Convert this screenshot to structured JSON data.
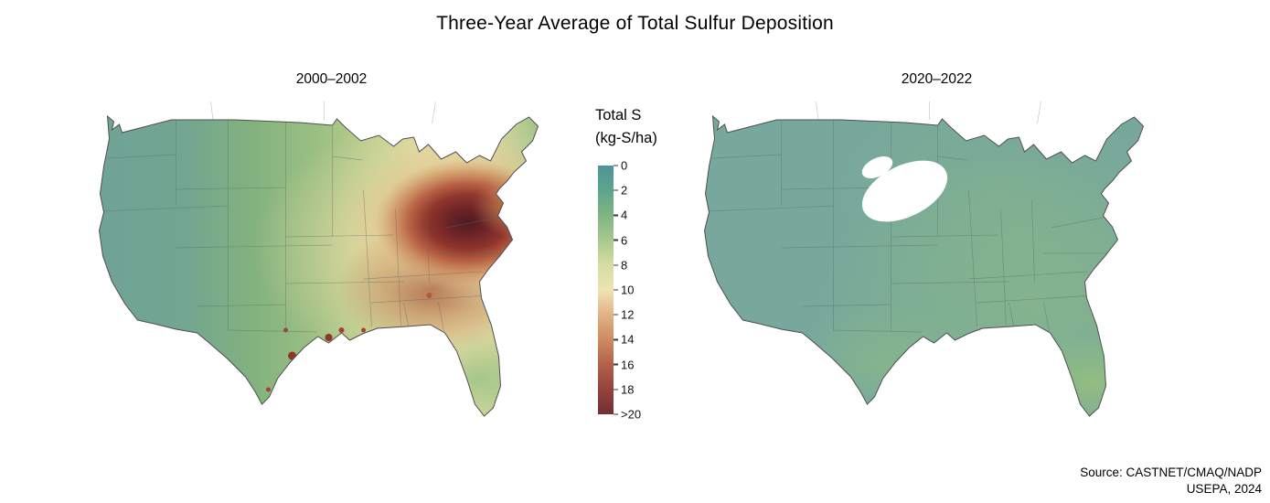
{
  "figure": {
    "title": "Three-Year Average of Total Sulfur Deposition",
    "source_line1": "Source: CASTNET/CMAQ/NADP",
    "source_line2": "USEPA, 2024"
  },
  "maps": [
    {
      "id": "map-2000-2002",
      "label": "2000–2002"
    },
    {
      "id": "map-2020-2022",
      "label": "2020–2022"
    }
  ],
  "legend": {
    "title_line1": "Total S",
    "title_line2": "(kg-S/ha)",
    "ticks": [
      "0",
      "2",
      "4",
      "6",
      "8",
      "10",
      "12",
      "14",
      "16",
      "18",
      ">20"
    ],
    "colors": [
      "#4e939b",
      "#5ea58c",
      "#7fb483",
      "#a8c98d",
      "#d5dda2",
      "#efe3b3",
      "#e2b286",
      "#ce8a60",
      "#b3614b",
      "#95423c",
      "#722f33"
    ]
  },
  "chart_data": {
    "type": "heatmap",
    "title": "Three-Year Average of Total Sulfur Deposition",
    "legend_title": "Total S (kg-S/ha)",
    "scale_ticks": [
      0,
      2,
      4,
      6,
      8,
      10,
      12,
      14,
      16,
      18,
      20
    ],
    "scale_note": "continuous teal-to-dark-red color ramp; bottom of scale labeled >20",
    "panels": [
      {
        "period": "2000–2002",
        "region_values_kgS_ha": {
          "west_coast_and_mountain_west": "0–3",
          "great_plains": "2–5",
          "upper_midwest": "3–6",
          "south_and_gulf_coast": "4–8 with local urban spots 12–20",
          "southeast": "4–10",
          "ohio_valley_west_virginia_pennsylvania": "14–>20 (peak region)",
          "appalachians_tennessee_kentucky": "8–16",
          "northeast_corridor": "8–14",
          "florida": "3–6"
        }
      },
      {
        "period": "2020–2022",
        "region_values_kgS_ha": {
          "nationwide": "0–3",
          "southeast_and_gulf_coast": "2–5",
          "florida": "3–5",
          "note": "small white no-data patch over northern plains (ND/MN area); one small yellow spot near Louisiana coast"
        }
      }
    ]
  }
}
